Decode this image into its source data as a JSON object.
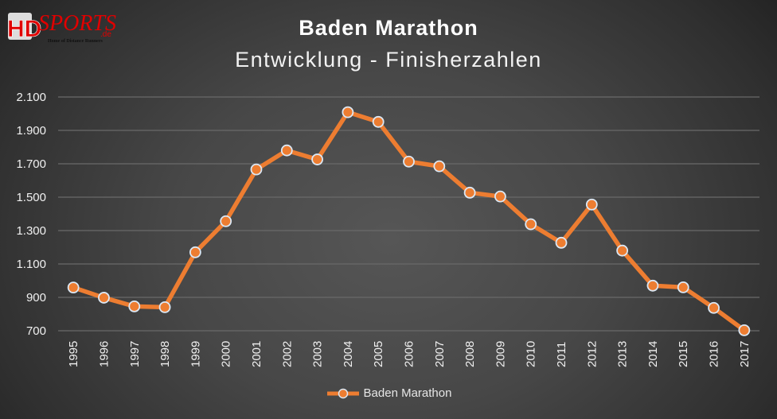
{
  "logo": {
    "text": "HDsports.de",
    "tagline": "Home of Distance Runners"
  },
  "chart_data": {
    "type": "line",
    "title": "Baden Marathon",
    "subtitle": "Entwicklung - Finisherzahlen",
    "xlabel": "",
    "ylabel": "",
    "categories": [
      "1995",
      "1996",
      "1997",
      "1998",
      "1999",
      "2000",
      "2001",
      "2002",
      "2003",
      "2004",
      "2005",
      "2006",
      "2007",
      "2008",
      "2009",
      "2010",
      "2011",
      "2012",
      "2013",
      "2014",
      "2015",
      "2016",
      "2017"
    ],
    "series": [
      {
        "name": "Baden Marathon",
        "values": [
          959,
          898,
          846,
          841,
          1170,
          1356,
          1666,
          1780,
          1726,
          2009,
          1951,
          1713,
          1685,
          1527,
          1504,
          1338,
          1227,
          1456,
          1180,
          970,
          960,
          837,
          703
        ]
      }
    ],
    "ylim": [
      700,
      2100
    ],
    "yticks": [
      700,
      900,
      1100,
      1300,
      1500,
      1700,
      1900,
      2100
    ],
    "ytick_labels": [
      "700",
      "900",
      "1.100",
      "1.300",
      "1.500",
      "1.700",
      "1.900",
      "2.100"
    ],
    "grid": true,
    "legend": "bottom",
    "colors": {
      "line": "#ed7d31",
      "marker_edge": "#dbe8f5",
      "grid": "#6a6a6a",
      "text": "#ffffff"
    }
  }
}
